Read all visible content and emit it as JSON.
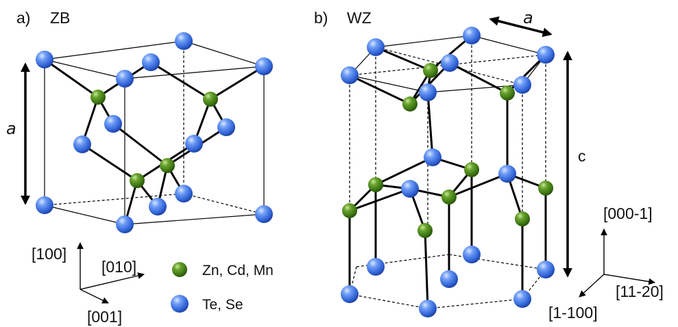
{
  "panel_a": {
    "label": "a)",
    "name": "ZB",
    "lattice_label": "a",
    "axes": {
      "up": "[100]",
      "right": "[010]",
      "down": "[001]"
    }
  },
  "panel_b": {
    "label": "b)",
    "name": "WZ",
    "lattice_a_label": "a",
    "lattice_c_label": "c",
    "axes": {
      "up": "[000-1]",
      "right": "[11-20]",
      "left": "[1-100]"
    }
  },
  "legend": {
    "items": [
      {
        "label": "Zn, Cd, Mn",
        "color": "#3f7f15"
      },
      {
        "label": "Te, Se",
        "color": "#2f6fe4"
      }
    ]
  },
  "colors": {
    "anion": "#2f6fe4",
    "cation": "#3f7f15"
  }
}
